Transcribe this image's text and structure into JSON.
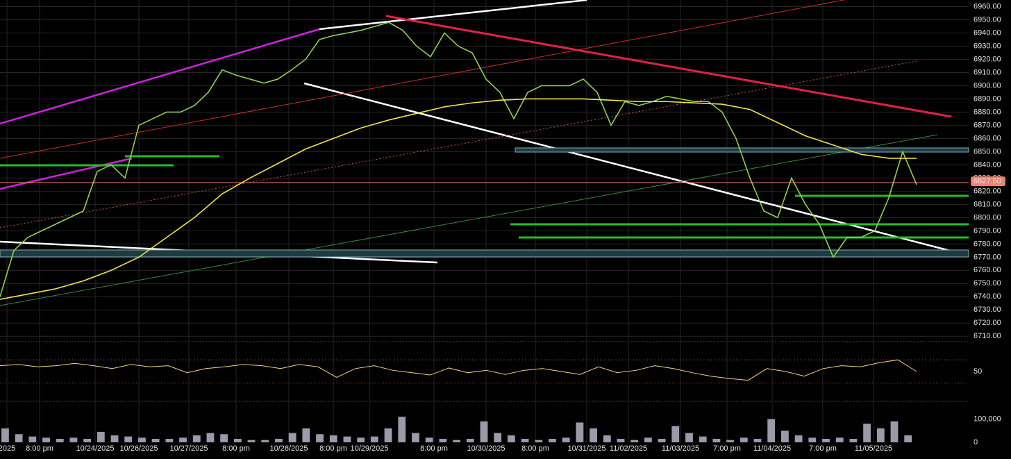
{
  "chart_data": [
    {
      "type": "line",
      "x": [
        0,
        1,
        2,
        3,
        4,
        5,
        6,
        7,
        8,
        9,
        10,
        11,
        12,
        13,
        14,
        15,
        16,
        17,
        18,
        19,
        20,
        21,
        22,
        23,
        24,
        25,
        26,
        27,
        28,
        29,
        30,
        31,
        32,
        33,
        34,
        35,
        36,
        37,
        38,
        39,
        40,
        41,
        42,
        43,
        44,
        45,
        46,
        47,
        48,
        49,
        50,
        51,
        52,
        53,
        54,
        55,
        56,
        57,
        58,
        59,
        60,
        61,
        62,
        63,
        64,
        65,
        66
      ],
      "series": [
        {
          "color": "#8fd14f",
          "x": [
            0,
            1,
            2,
            3,
            4,
            5,
            6,
            7,
            8,
            9,
            10,
            11,
            12,
            13,
            14,
            15,
            16,
            17,
            18,
            19,
            20,
            21,
            22,
            23,
            24,
            25,
            26,
            27,
            28,
            29,
            30,
            31,
            32,
            33,
            34,
            35,
            36,
            37,
            38,
            39,
            40,
            41,
            42,
            43,
            44,
            45,
            46,
            47,
            48,
            49,
            50,
            51,
            52,
            53,
            54,
            55,
            56,
            57,
            58,
            59,
            60,
            61,
            62,
            63,
            64,
            65,
            66
          ],
          "values": [
            6740,
            6775,
            6785,
            6790,
            6795,
            6800,
            6805,
            6835,
            6840,
            6830,
            6870,
            6875,
            6880,
            6880,
            6885,
            6895,
            6912,
            6908,
            6905,
            6902,
            6905,
            6912,
            6920,
            6935,
            6938,
            6940,
            6942,
            6945,
            6948,
            6942,
            6930,
            6922,
            6940,
            6930,
            6925,
            6905,
            6895,
            6875,
            6895,
            6900,
            6900,
            6900,
            6905,
            6895,
            6870,
            6888,
            6885,
            6888,
            6892,
            6890,
            6888,
            6888,
            6880,
            6860,
            6830,
            6805,
            6800,
            6830,
            6810,
            6795,
            6770,
            6785,
            6785,
            6790,
            6815,
            6850,
            6825
          ]
        },
        {
          "color": "#f2e34a",
          "x": [
            0,
            2,
            4,
            6,
            8,
            10,
            12,
            14,
            16,
            18,
            20,
            22,
            24,
            26,
            28,
            30,
            32,
            34,
            36,
            38,
            40,
            42,
            44,
            46,
            48,
            50,
            52,
            54,
            56,
            58,
            60,
            62,
            64,
            66
          ],
          "values": [
            6738,
            6742,
            6746,
            6752,
            6760,
            6770,
            6785,
            6800,
            6818,
            6830,
            6841,
            6852,
            6860,
            6868,
            6874,
            6879,
            6884,
            6887,
            6889,
            6890,
            6890,
            6890,
            6889,
            6888,
            6888,
            6887,
            6886,
            6882,
            6872,
            6862,
            6855,
            6848,
            6845,
            6845
          ]
        }
      ],
      "xlim": [
        0,
        69.75
      ],
      "xticks": [
        {
          "value": 0.5,
          "label": "2025"
        },
        {
          "value": 2.85,
          "label": "8:00 pm"
        },
        {
          "value": 6.85,
          "label": "10/24/2025"
        },
        {
          "value": 10,
          "label": "10/26/2025"
        },
        {
          "value": 13.6,
          "label": "10/27/2025"
        },
        {
          "value": 17,
          "label": "8:00 pm"
        },
        {
          "value": 20.8,
          "label": "10/28/2025"
        },
        {
          "value": 24,
          "label": "8:00 pm"
        },
        {
          "value": 26.6,
          "label": "10/29/2025"
        },
        {
          "value": 31.25,
          "label": "8:00 pm"
        },
        {
          "value": 35,
          "label": "10/30/2025"
        },
        {
          "value": 38.55,
          "label": "8:00 pm"
        },
        {
          "value": 42.25,
          "label": "10/31/2025"
        },
        {
          "value": 45.25,
          "label": "11/02/2025"
        },
        {
          "value": 49,
          "label": "11/03/2025"
        },
        {
          "value": 52.35,
          "label": "7:00 pm"
        },
        {
          "value": 55.6,
          "label": "11/04/2025"
        },
        {
          "value": 59.25,
          "label": "7:00 pm"
        },
        {
          "value": 62.9,
          "label": "11/05/2025"
        }
      ],
      "ylim": [
        6707,
        6965
      ],
      "yticks": [
        {
          "value": 6710,
          "label": "6710.00"
        },
        {
          "value": 6720,
          "label": "6720.00"
        },
        {
          "value": 6730,
          "label": "6730.00"
        },
        {
          "value": 6740,
          "label": "6740.00"
        },
        {
          "value": 6750,
          "label": "6750.00"
        },
        {
          "value": 6760,
          "label": "6760.00"
        },
        {
          "value": 6770,
          "label": "6770.00"
        },
        {
          "value": 6780,
          "label": "6780.00"
        },
        {
          "value": 6790,
          "label": "6790.00"
        },
        {
          "value": 6800,
          "label": "6800.00"
        },
        {
          "value": 6810,
          "label": "6810.00"
        },
        {
          "value": 6820,
          "label": "6820.00"
        },
        {
          "value": 6830,
          "label": "6830.00"
        },
        {
          "value": 6840,
          "label": "6840.00"
        },
        {
          "value": 6850,
          "label": "6850.00"
        },
        {
          "value": 6860,
          "label": "6860.00"
        },
        {
          "value": 6870,
          "label": "6870.00"
        },
        {
          "value": 6880,
          "label": "6880.00"
        },
        {
          "value": 6890,
          "label": "6890.00"
        },
        {
          "value": 6900,
          "label": "6900.00"
        },
        {
          "value": 6910,
          "label": "6910.00"
        },
        {
          "value": 6920,
          "label": "6920.00"
        },
        {
          "value": 6930,
          "label": "6930.00"
        },
        {
          "value": 6940,
          "label": "6940.00"
        },
        {
          "value": 6950,
          "label": "6950.00"
        },
        {
          "value": 6960,
          "label": "6960.00"
        }
      ],
      "grid": true,
      "last_price": {
        "value": 6827.5,
        "label": "6827.50",
        "color": "#f08070"
      }
    },
    {
      "type": "line",
      "color": "#f2d48a",
      "values": [
        60,
        62,
        58,
        60,
        64,
        60,
        55,
        62,
        58,
        60,
        48,
        55,
        58,
        62,
        60,
        55,
        62,
        58,
        40,
        55,
        60,
        52,
        48,
        44,
        56,
        48,
        52,
        45,
        52,
        55,
        50,
        45,
        58,
        48,
        52,
        60,
        55,
        48,
        42,
        38,
        35,
        55,
        50,
        42,
        55,
        60,
        58,
        65,
        70,
        50
      ],
      "ylim": [
        0,
        100
      ],
      "yticks": [
        50
      ]
    },
    {
      "type": "bar",
      "color": "#9a9aa8",
      "values": [
        60000,
        35000,
        25000,
        20000,
        15000,
        20000,
        15000,
        45000,
        30000,
        25000,
        20000,
        15000,
        15000,
        20000,
        30000,
        40000,
        35000,
        15000,
        10000,
        10000,
        15000,
        40000,
        60000,
        35000,
        30000,
        25000,
        20000,
        25000,
        60000,
        110000,
        40000,
        20000,
        15000,
        10000,
        15000,
        90000,
        40000,
        30000,
        15000,
        10000,
        15000,
        20000,
        85000,
        60000,
        30000,
        15000,
        10000,
        20000,
        15000,
        70000,
        40000,
        25000,
        15000,
        10000,
        20000,
        15000,
        100000,
        50000,
        30000,
        20000,
        15000,
        20000,
        15000,
        80000,
        60000,
        90000,
        30000
      ],
      "ylim": [
        0,
        140000
      ],
      "yticks": [
        0,
        {
          "value": 100000,
          "label": "100,000"
        }
      ]
    }
  ]
}
